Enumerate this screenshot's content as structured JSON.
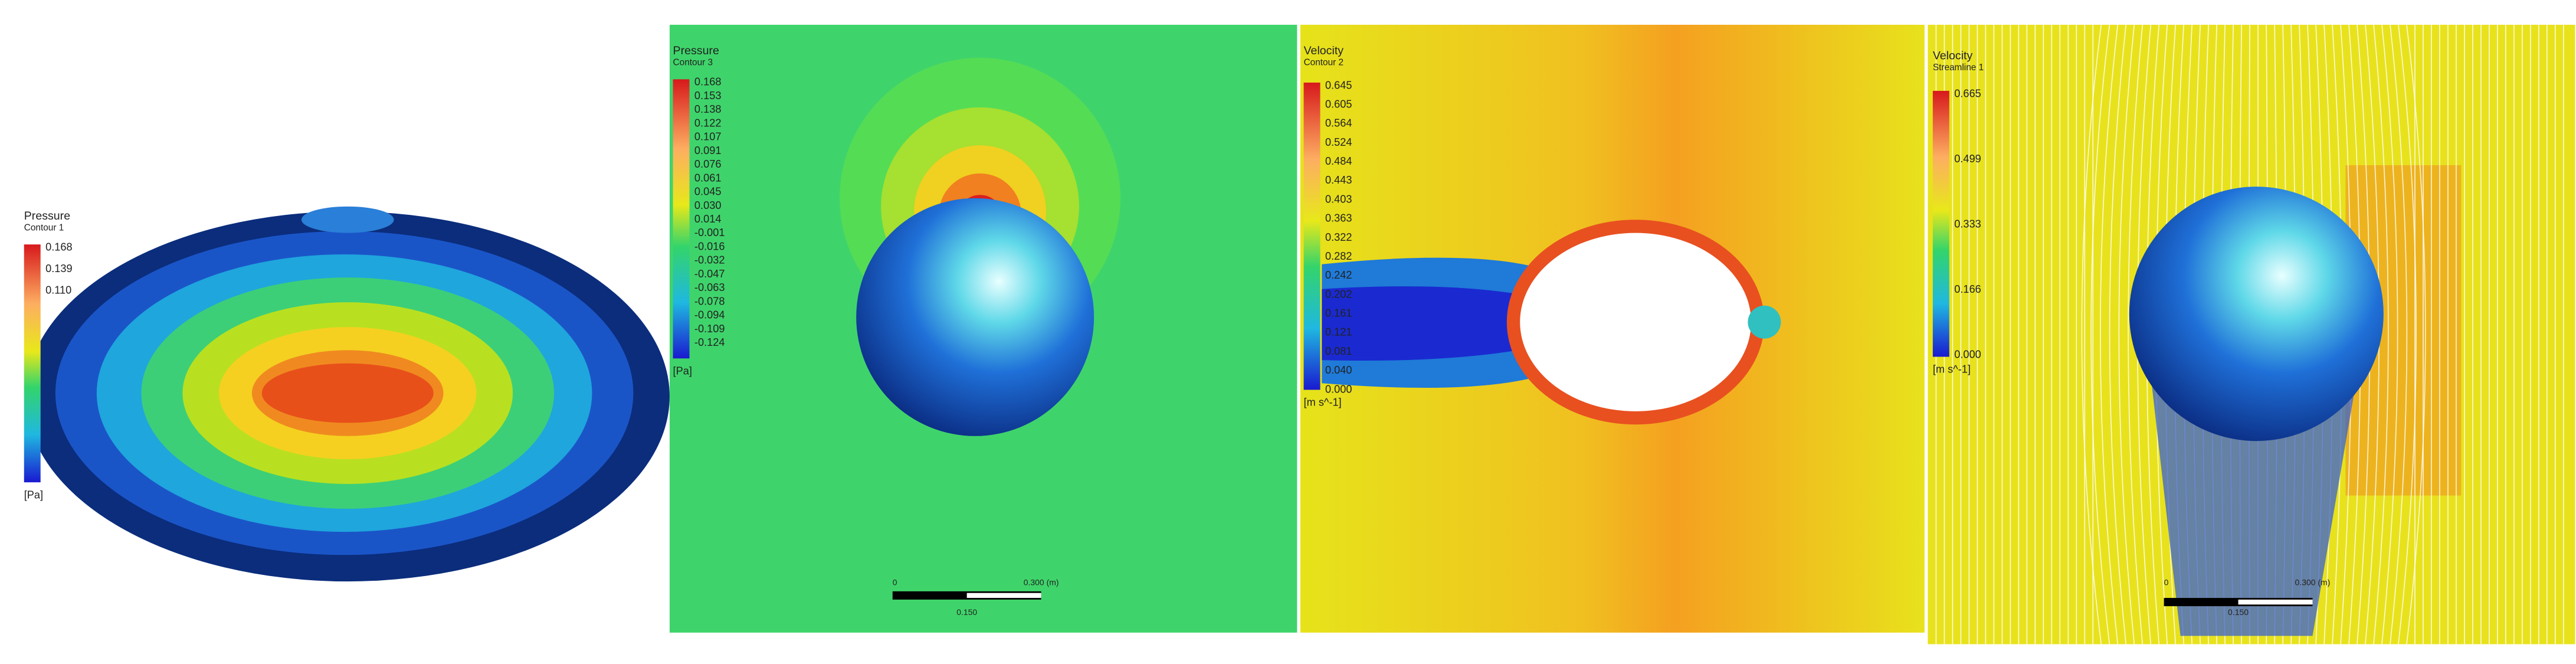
{
  "panels": [
    {
      "title": "Pressure",
      "subtitle": "Contour 1",
      "legend_labels": [
        "0.168",
        "0.139",
        "0.110"
      ],
      "unit": "[Pa]"
    },
    {
      "title": "Pressure",
      "subtitle": "Contour 3",
      "legend_labels": [
        "0.168",
        "0.153",
        "0.138",
        "0.122",
        "0.107",
        "0.091",
        "0.076",
        "0.061",
        "0.045",
        "0.030",
        "0.014",
        "-0.001",
        "-0.016",
        "-0.032",
        "-0.047",
        "-0.063",
        "-0.078",
        "-0.094",
        "-0.109",
        "-0.124"
      ],
      "unit": "[Pa]",
      "scale_bar": {
        "start": "0",
        "end": "0.300 (m)",
        "mid": "0.150"
      }
    },
    {
      "title": "Velocity",
      "subtitle": "Contour 2",
      "legend_labels": [
        "0.645",
        "0.605",
        "0.564",
        "0.524",
        "0.484",
        "0.443",
        "0.403",
        "0.363",
        "0.322",
        "0.282",
        "0.242",
        "0.202",
        "0.161",
        "0.121",
        "0.081",
        "0.040",
        "0.000"
      ],
      "unit": "[m s^-1]"
    },
    {
      "title": "Velocity",
      "subtitle": "Streamline 1",
      "legend_labels": [
        "0.665",
        "0.499",
        "0.333",
        "0.166",
        "0.000"
      ],
      "unit": "[m s^-1]",
      "scale_bar": {
        "start": "0",
        "end": "0.300 (m)",
        "mid": "0.150"
      }
    }
  ]
}
